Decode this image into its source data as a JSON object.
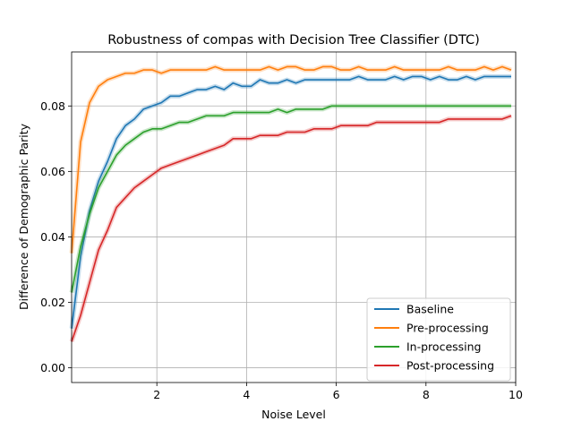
{
  "chart_data": {
    "type": "line",
    "title": "Robustness of compas with Decision Tree Classifier (DTC)",
    "xlabel": "Noise Level",
    "ylabel": "Difference of Demographic Parity",
    "xlim": [
      0.1,
      10
    ],
    "ylim": [
      -0.0045,
      0.0965
    ],
    "xticks": [
      2,
      4,
      6,
      8,
      10
    ],
    "yticks": [
      0.0,
      0.02,
      0.04,
      0.06,
      0.08
    ],
    "ytick_labels": [
      "0.00",
      "0.02",
      "0.04",
      "0.06",
      "0.08"
    ],
    "grid": true,
    "legend_position": "lower-right",
    "x": [
      0.1,
      0.3,
      0.5,
      0.7,
      0.9,
      1.1,
      1.3,
      1.5,
      1.7,
      1.9,
      2.1,
      2.3,
      2.5,
      2.7,
      2.9,
      3.1,
      3.3,
      3.5,
      3.7,
      3.9,
      4.1,
      4.3,
      4.5,
      4.7,
      4.9,
      5.1,
      5.3,
      5.5,
      5.7,
      5.9,
      6.1,
      6.3,
      6.5,
      6.7,
      6.9,
      7.1,
      7.3,
      7.5,
      7.7,
      7.9,
      8.1,
      8.3,
      8.5,
      8.7,
      8.9,
      9.1,
      9.3,
      9.5,
      9.7,
      9.9
    ],
    "series": [
      {
        "name": "Baseline",
        "color": "#1f77b4",
        "values": [
          0.012,
          0.034,
          0.048,
          0.057,
          0.063,
          0.07,
          0.074,
          0.076,
          0.079,
          0.08,
          0.081,
          0.083,
          0.083,
          0.084,
          0.085,
          0.085,
          0.086,
          0.085,
          0.087,
          0.086,
          0.086,
          0.088,
          0.087,
          0.087,
          0.088,
          0.087,
          0.088,
          0.088,
          0.088,
          0.088,
          0.088,
          0.088,
          0.089,
          0.088,
          0.088,
          0.088,
          0.089,
          0.088,
          0.089,
          0.089,
          0.088,
          0.089,
          0.088,
          0.088,
          0.089,
          0.088,
          0.089,
          0.089,
          0.089,
          0.089
        ]
      },
      {
        "name": "Pre-processing",
        "color": "#ff7f0e",
        "values": [
          0.035,
          0.069,
          0.081,
          0.086,
          0.088,
          0.089,
          0.09,
          0.09,
          0.091,
          0.091,
          0.09,
          0.091,
          0.091,
          0.091,
          0.091,
          0.091,
          0.092,
          0.091,
          0.091,
          0.091,
          0.091,
          0.091,
          0.092,
          0.091,
          0.092,
          0.092,
          0.091,
          0.091,
          0.092,
          0.092,
          0.091,
          0.091,
          0.092,
          0.091,
          0.091,
          0.091,
          0.092,
          0.091,
          0.091,
          0.091,
          0.091,
          0.091,
          0.092,
          0.091,
          0.091,
          0.091,
          0.092,
          0.091,
          0.092,
          0.091
        ]
      },
      {
        "name": "In-processing",
        "color": "#2ca02c",
        "values": [
          0.023,
          0.037,
          0.047,
          0.055,
          0.06,
          0.065,
          0.068,
          0.07,
          0.072,
          0.073,
          0.073,
          0.074,
          0.075,
          0.075,
          0.076,
          0.077,
          0.077,
          0.077,
          0.078,
          0.078,
          0.078,
          0.078,
          0.078,
          0.079,
          0.078,
          0.079,
          0.079,
          0.079,
          0.079,
          0.08,
          0.08,
          0.08,
          0.08,
          0.08,
          0.08,
          0.08,
          0.08,
          0.08,
          0.08,
          0.08,
          0.08,
          0.08,
          0.08,
          0.08,
          0.08,
          0.08,
          0.08,
          0.08,
          0.08,
          0.08
        ]
      },
      {
        "name": "Post-processing",
        "color": "#d62728",
        "values": [
          0.008,
          0.016,
          0.026,
          0.036,
          0.042,
          0.049,
          0.052,
          0.055,
          0.057,
          0.059,
          0.061,
          0.062,
          0.063,
          0.064,
          0.065,
          0.066,
          0.067,
          0.068,
          0.07,
          0.07,
          0.07,
          0.071,
          0.071,
          0.071,
          0.072,
          0.072,
          0.072,
          0.073,
          0.073,
          0.073,
          0.074,
          0.074,
          0.074,
          0.074,
          0.075,
          0.075,
          0.075,
          0.075,
          0.075,
          0.075,
          0.075,
          0.075,
          0.076,
          0.076,
          0.076,
          0.076,
          0.076,
          0.076,
          0.076,
          0.077
        ]
      }
    ]
  }
}
